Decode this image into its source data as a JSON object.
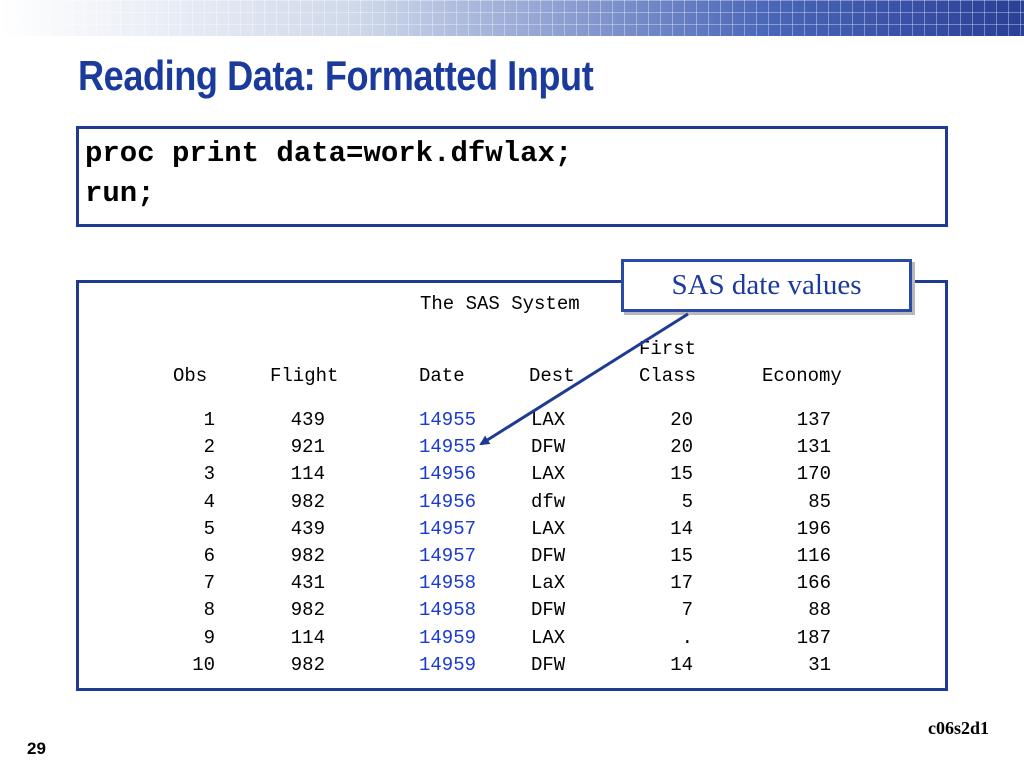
{
  "slide": {
    "title": "Reading Data: Formatted Input",
    "number": "29",
    "id": "c06s2d1"
  },
  "code": {
    "lines": [
      "proc print data=work.dfwlax;",
      "run;"
    ]
  },
  "output": {
    "system_title": "The SAS System",
    "header_top": {
      "first": "First"
    },
    "headers": [
      "Obs",
      "Flight",
      "Date",
      "Dest",
      "Class",
      "Economy"
    ],
    "rows": [
      {
        "obs": "1",
        "flight": "439",
        "date": "14955",
        "dest": "LAX",
        "first": "20",
        "economy": "137"
      },
      {
        "obs": "2",
        "flight": "921",
        "date": "14955",
        "dest": "DFW",
        "first": "20",
        "economy": "131"
      },
      {
        "obs": "3",
        "flight": "114",
        "date": "14956",
        "dest": "LAX",
        "first": "15",
        "economy": "170"
      },
      {
        "obs": "4",
        "flight": "982",
        "date": "14956",
        "dest": "dfw",
        "first": "5",
        "economy": "85"
      },
      {
        "obs": "5",
        "flight": "439",
        "date": "14957",
        "dest": "LAX",
        "first": "14",
        "economy": "196"
      },
      {
        "obs": "6",
        "flight": "982",
        "date": "14957",
        "dest": "DFW",
        "first": "15",
        "economy": "116"
      },
      {
        "obs": "7",
        "flight": "431",
        "date": "14958",
        "dest": "LaX",
        "first": "17",
        "economy": "166"
      },
      {
        "obs": "8",
        "flight": "982",
        "date": "14958",
        "dest": "DFW",
        "first": "7",
        "economy": "88"
      },
      {
        "obs": "9",
        "flight": "114",
        "date": "14959",
        "dest": "LAX",
        "first": ".",
        "economy": "187"
      },
      {
        "obs": "10",
        "flight": "982",
        "date": "14959",
        "dest": "DFW",
        "first": "14",
        "economy": "31"
      }
    ]
  },
  "callout": {
    "text": "SAS date values"
  },
  "colors": {
    "title": "#1a3a9c",
    "border": "#1f3a93",
    "date_values": "#1a3ad0"
  }
}
